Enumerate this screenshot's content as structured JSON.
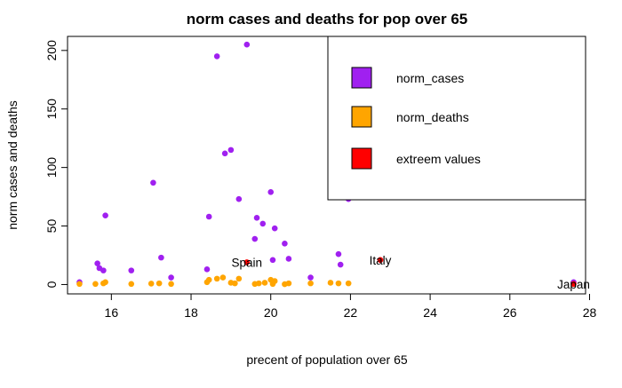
{
  "chart_data": {
    "type": "scatter",
    "title": "norm cases and deaths for pop over 65",
    "xlabel": "precent of population over 65",
    "ylabel": "norm cases and deaths",
    "xlim": [
      14.9,
      27.9
    ],
    "ylim": [
      -8,
      212
    ],
    "xticks": [
      16,
      18,
      20,
      22,
      24,
      26,
      28
    ],
    "yticks": [
      0,
      50,
      100,
      150,
      200
    ],
    "grid": false,
    "legend_position": "top-right",
    "series": [
      {
        "name": "norm_cases",
        "color": "#A020F0",
        "points": [
          {
            "x": 15.2,
            "y": 2
          },
          {
            "x": 15.65,
            "y": 18
          },
          {
            "x": 15.7,
            "y": 14
          },
          {
            "x": 15.8,
            "y": 12
          },
          {
            "x": 15.85,
            "y": 59
          },
          {
            "x": 16.5,
            "y": 12
          },
          {
            "x": 17.05,
            "y": 87
          },
          {
            "x": 17.25,
            "y": 23
          },
          {
            "x": 17.5,
            "y": 6
          },
          {
            "x": 18.4,
            "y": 13
          },
          {
            "x": 18.45,
            "y": 58
          },
          {
            "x": 18.65,
            "y": 195
          },
          {
            "x": 18.85,
            "y": 112
          },
          {
            "x": 19.0,
            "y": 115
          },
          {
            "x": 19.2,
            "y": 73
          },
          {
            "x": 19.4,
            "y": 205
          },
          {
            "x": 19.6,
            "y": 39
          },
          {
            "x": 19.65,
            "y": 57
          },
          {
            "x": 19.8,
            "y": 52
          },
          {
            "x": 20.0,
            "y": 79
          },
          {
            "x": 20.05,
            "y": 21
          },
          {
            "x": 20.1,
            "y": 48
          },
          {
            "x": 20.35,
            "y": 35
          },
          {
            "x": 20.45,
            "y": 22
          },
          {
            "x": 21.0,
            "y": 6
          },
          {
            "x": 21.7,
            "y": 26
          },
          {
            "x": 21.75,
            "y": 17
          },
          {
            "x": 21.95,
            "y": 73
          },
          {
            "x": 27.6,
            "y": 2
          }
        ]
      },
      {
        "name": "norm_deaths",
        "color": "#FFA500",
        "points": [
          {
            "x": 15.2,
            "y": 0.5
          },
          {
            "x": 15.6,
            "y": 0.5
          },
          {
            "x": 15.8,
            "y": 1
          },
          {
            "x": 15.85,
            "y": 2
          },
          {
            "x": 16.5,
            "y": 0.5
          },
          {
            "x": 17.0,
            "y": 0.8
          },
          {
            "x": 17.2,
            "y": 1
          },
          {
            "x": 17.5,
            "y": 0.5
          },
          {
            "x": 18.4,
            "y": 2
          },
          {
            "x": 18.45,
            "y": 4
          },
          {
            "x": 18.65,
            "y": 5
          },
          {
            "x": 18.8,
            "y": 6
          },
          {
            "x": 19.0,
            "y": 1.5
          },
          {
            "x": 19.1,
            "y": 1
          },
          {
            "x": 19.2,
            "y": 5
          },
          {
            "x": 19.6,
            "y": 0.5
          },
          {
            "x": 19.7,
            "y": 1
          },
          {
            "x": 19.85,
            "y": 1.5
          },
          {
            "x": 20.0,
            "y": 4
          },
          {
            "x": 20.05,
            "y": 0.5
          },
          {
            "x": 20.1,
            "y": 3
          },
          {
            "x": 20.35,
            "y": 0.3
          },
          {
            "x": 20.45,
            "y": 1
          },
          {
            "x": 21.0,
            "y": 1
          },
          {
            "x": 21.5,
            "y": 1.5
          },
          {
            "x": 21.7,
            "y": 1
          },
          {
            "x": 21.95,
            "y": 1
          }
        ]
      },
      {
        "name": "extreem values",
        "color": "#FF0000",
        "points": [
          {
            "x": 19.4,
            "y": 19,
            "label": "Spain"
          },
          {
            "x": 22.75,
            "y": 21,
            "label": "Italy"
          },
          {
            "x": 27.6,
            "y": 0.5,
            "label": "Japan"
          }
        ]
      }
    ]
  }
}
